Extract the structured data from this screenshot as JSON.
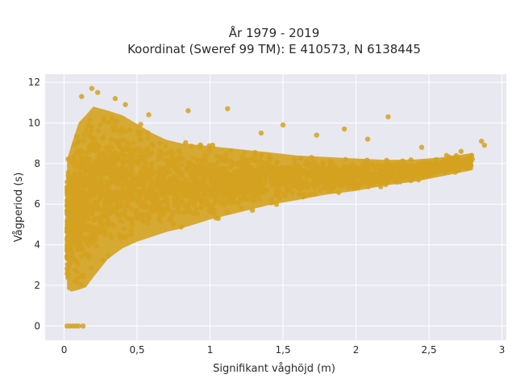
{
  "chart_data": {
    "type": "scatter",
    "title_line1": "År 1979 - 2019",
    "title_line2": "Koordinat (Sweref 99 TM): E 410573, N 6138445",
    "xlabel": "Signifikant våghöjd (m)",
    "ylabel": "Vågperiod (s)",
    "xlim": [
      -0.13,
      3.03
    ],
    "ylim": [
      -0.7,
      12.4
    ],
    "x_ticks": [
      0,
      0.5,
      1,
      1.5,
      2,
      2.5,
      3
    ],
    "x_tick_labels": [
      "0",
      "0,5",
      "1",
      "1,5",
      "2",
      "2,5",
      "3"
    ],
    "y_ticks": [
      0,
      2,
      4,
      6,
      8,
      10,
      12
    ],
    "y_tick_labels": [
      "0",
      "2",
      "4",
      "6",
      "8",
      "10",
      "12"
    ],
    "grid": true,
    "marker_color": "#D4A21E",
    "background_color": "#E8E8F0",
    "density_envelope": {
      "x": [
        0.02,
        0.05,
        0.1,
        0.15,
        0.2,
        0.3,
        0.4,
        0.5,
        0.6,
        0.7,
        0.8,
        1.0,
        1.2,
        1.4,
        1.6,
        1.8,
        2.0,
        2.2,
        2.4,
        2.6,
        2.8
      ],
      "y_lower": [
        1.2,
        1.0,
        1.0,
        1.1,
        1.6,
        2.6,
        3.2,
        3.6,
        3.9,
        4.2,
        4.4,
        4.9,
        5.3,
        5.7,
        6.0,
        6.3,
        6.5,
        6.8,
        7.0,
        7.3,
        7.6
      ],
      "y_upper": [
        8.8,
        9.6,
        10.8,
        11.2,
        11.6,
        11.3,
        11.0,
        10.5,
        10.0,
        9.6,
        9.4,
        9.2,
        9.0,
        8.8,
        8.6,
        8.5,
        8.4,
        8.3,
        8.3,
        8.4,
        8.6
      ]
    },
    "zero_period_points": [
      {
        "x": 0.02,
        "y": 0
      },
      {
        "x": 0.04,
        "y": 0
      },
      {
        "x": 0.06,
        "y": 0
      },
      {
        "x": 0.08,
        "y": 0
      },
      {
        "x": 0.1,
        "y": 0
      },
      {
        "x": 0.13,
        "y": 0
      }
    ],
    "outlier_points": [
      {
        "x": 0.19,
        "y": 11.7
      },
      {
        "x": 0.23,
        "y": 11.5
      },
      {
        "x": 0.12,
        "y": 11.3
      },
      {
        "x": 0.35,
        "y": 11.2
      },
      {
        "x": 0.42,
        "y": 10.9
      },
      {
        "x": 0.58,
        "y": 10.4
      },
      {
        "x": 0.85,
        "y": 10.6
      },
      {
        "x": 1.12,
        "y": 10.7
      },
      {
        "x": 1.35,
        "y": 9.5
      },
      {
        "x": 1.5,
        "y": 9.9
      },
      {
        "x": 1.73,
        "y": 9.4
      },
      {
        "x": 1.92,
        "y": 9.7
      },
      {
        "x": 2.08,
        "y": 9.2
      },
      {
        "x": 2.22,
        "y": 10.3
      },
      {
        "x": 2.45,
        "y": 8.8
      },
      {
        "x": 2.62,
        "y": 8.4
      },
      {
        "x": 2.72,
        "y": 8.6
      },
      {
        "x": 2.86,
        "y": 9.1
      },
      {
        "x": 2.88,
        "y": 8.9
      }
    ]
  }
}
